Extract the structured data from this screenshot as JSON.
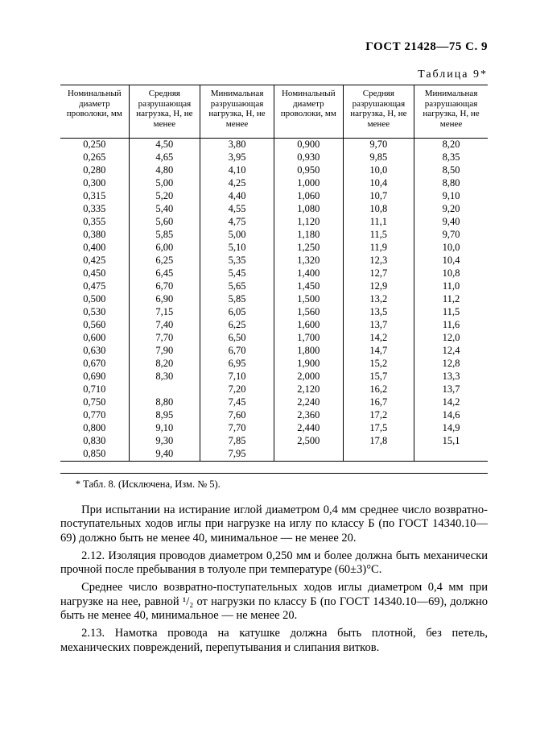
{
  "header": "ГОСТ 21428—75 С. 9",
  "table": {
    "label": "Таблица 9*",
    "headers": [
      "Номинальный диаметр проволоки, мм",
      "Средняя разрушающая нагрузка, Н, не менее",
      "Минимальная разрушающая нагрузка, Н, не менее",
      "Номинальный диаметр проволоки, мм",
      "Средняя разрушающая нагрузка, Н, не менее",
      "Минимальная разрушающая нагрузка, Н, не менее"
    ],
    "rows": [
      [
        "0,250",
        "4,50",
        "3,80",
        "0,900",
        "9,70",
        "8,20"
      ],
      [
        "0,265",
        "4,65",
        "3,95",
        "0,930",
        "9,85",
        "8,35"
      ],
      [
        "0,280",
        "4,80",
        "4,10",
        "0,950",
        "10,0",
        "8,50"
      ],
      [
        "0,300",
        "5,00",
        "4,25",
        "1,000",
        "10,4",
        "8,80"
      ],
      [
        "0,315",
        "5,20",
        "4,40",
        "1,060",
        "10,7",
        "9,10"
      ],
      [
        "0,335",
        "5,40",
        "4,55",
        "1,080",
        "10,8",
        "9,20"
      ],
      [
        "0,355",
        "5,60",
        "4,75",
        "1,120",
        "11,1",
        "9,40"
      ],
      [
        "0,380",
        "5,85",
        "5,00",
        "1,180",
        "11,5",
        "9,70"
      ],
      [
        "0,400",
        "6,00",
        "5,10",
        "1,250",
        "11,9",
        "10,0"
      ],
      [
        "0,425",
        "6,25",
        "5,35",
        "1,320",
        "12,3",
        "10,4"
      ],
      [
        "0,450",
        "6,45",
        "5,45",
        "1,400",
        "12,7",
        "10,8"
      ],
      [
        "0,475",
        "6,70",
        "5,65",
        "1,450",
        "12,9",
        "11,0"
      ],
      [
        "0,500",
        "6,90",
        "5,85",
        "1,500",
        "13,2",
        "11,2"
      ],
      [
        "0,530",
        "7,15",
        "6,05",
        "1,560",
        "13,5",
        "11,5"
      ],
      [
        "0,560",
        "7,40",
        "6,25",
        "1,600",
        "13,7",
        "11,6"
      ],
      [
        "0,600",
        "7,70",
        "6,50",
        "1,700",
        "14,2",
        "12,0"
      ],
      [
        "0,630",
        "7,90",
        "6,70",
        "1,800",
        "14,7",
        "12,4"
      ],
      [
        "0,670",
        "8,20",
        "6,95",
        "1,900",
        "15,2",
        "12,8"
      ],
      [
        "0,690",
        "8,30",
        "7,10",
        "2,000",
        "15,7",
        "13,3"
      ],
      [
        "0,710",
        "",
        "7,20",
        "2,120",
        "16,2",
        "13,7"
      ],
      [
        "0,750",
        "8,80",
        "7,45",
        "2,240",
        "16,7",
        "14,2"
      ],
      [
        "0,770",
        "8,95",
        "7,60",
        "2,360",
        "17,2",
        "14,6"
      ],
      [
        "0,800",
        "9,10",
        "7,70",
        "2,440",
        "17,5",
        "14,9"
      ],
      [
        "0,830",
        "9,30",
        "7,85",
        "2,500",
        "17,8",
        "15,1"
      ],
      [
        "0,850",
        "9,40",
        "7,95",
        "",
        "",
        ""
      ]
    ]
  },
  "footnote": "* Табл. 8. (Исключена, Изм. № 5).",
  "paragraphs": {
    "p1": "При испытании на истирание иглой диаметром 0,4 мм среднее число возвратно-поступательных ходов иглы при нагрузке на иглу по классу Б (по ГОСТ 14340.10—69) должно быть не менее 40, минимальное — не менее 20.",
    "p2": "2.12. Изоляция проводов диаметром 0,250 мм и более должна быть механически прочной после пребывания в толуоле при температуре (60±3)°С.",
    "p3": "Среднее число возвратно-поступательных ходов иглы диаметром 0,4 мм при нагрузке на нее, равной ¹/₂ от нагрузки по классу Б (по ГОСТ 14340.10—69), должно быть не менее 40, минимальное — не менее 20.",
    "p4": "2.13. Намотка провода на катушке должна быть плотной, без петель, механических повреждений, перепутывания и слипания витков."
  }
}
